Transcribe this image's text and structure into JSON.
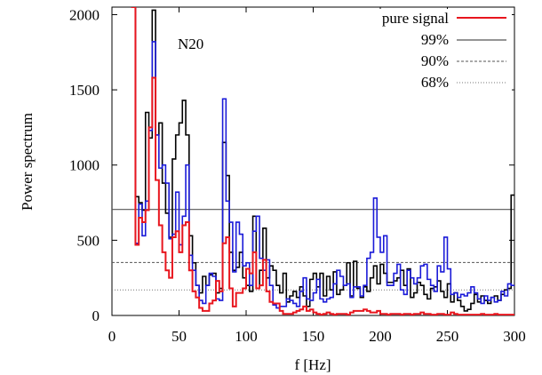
{
  "chart_data": {
    "type": "line",
    "step": true,
    "xlabel": "f [Hz]",
    "ylabel": "Power spectrum",
    "xlim": [
      0,
      300
    ],
    "ylim": [
      0,
      2050
    ],
    "xticks": [
      0,
      50,
      100,
      150,
      200,
      250,
      300
    ],
    "yticks": [
      0,
      500,
      1000,
      1500,
      2000
    ],
    "annotation": "N20",
    "legend_position": "top-right",
    "x": [
      15,
      17.5,
      20,
      22.5,
      25,
      27.5,
      30,
      32.5,
      35,
      37.5,
      40,
      42.5,
      45,
      47.5,
      50,
      52.5,
      55,
      57.5,
      60,
      62.5,
      65,
      67.5,
      70,
      72.5,
      75,
      77.5,
      80,
      82.5,
      85,
      87.5,
      90,
      92.5,
      95,
      97.5,
      100,
      102.5,
      105,
      107.5,
      110,
      112.5,
      115,
      117.5,
      120,
      122.5,
      125,
      127.5,
      130,
      132.5,
      135,
      137.5,
      140,
      142.5,
      145,
      147.5,
      150,
      152.5,
      155,
      157.5,
      160,
      162.5,
      165,
      167.5,
      170,
      172.5,
      175,
      177.5,
      180,
      182.5,
      185,
      187.5,
      190,
      192.5,
      195,
      197.5,
      200,
      202.5,
      205,
      207.5,
      210,
      212.5,
      215,
      217.5,
      220,
      222.5,
      225,
      227.5,
      230,
      232.5,
      235,
      237.5,
      240,
      242.5,
      245,
      247.5,
      250,
      252.5,
      255,
      257.5,
      260,
      262.5,
      265,
      267.5,
      270,
      272.5,
      275,
      277.5,
      280,
      282.5,
      285,
      287.5,
      290,
      292.5,
      295,
      297.5
    ],
    "series": [
      {
        "name": "pure signal",
        "color": "#e8161e",
        "dash": "solid",
        "values": [
          2050,
          470,
          650,
          620,
          700,
          1250,
          1580,
          900,
          600,
          420,
          300,
          250,
          520,
          560,
          420,
          600,
          620,
          300,
          160,
          120,
          50,
          30,
          30,
          80,
          100,
          230,
          160,
          480,
          520,
          180,
          60,
          150,
          150,
          180,
          310,
          280,
          420,
          180,
          200,
          370,
          160,
          90,
          80,
          80,
          30,
          10,
          10,
          10,
          20,
          30,
          40,
          60,
          30,
          40,
          20,
          10,
          5,
          10,
          20,
          10,
          5,
          10,
          10,
          10,
          5,
          20,
          30,
          30,
          30,
          40,
          30,
          20,
          20,
          30,
          10,
          10,
          5,
          10,
          10,
          10,
          5,
          10,
          10,
          5,
          10,
          10,
          20,
          10,
          10,
          5,
          5,
          10,
          10,
          5,
          5,
          20,
          10,
          5,
          5,
          5,
          5,
          5,
          5,
          5,
          10,
          5,
          5,
          5,
          10,
          5,
          5,
          5,
          5,
          5
        ]
      },
      {
        "name": "",
        "color": "#000000",
        "dash": "solid",
        "values": [
          2050,
          790,
          750,
          700,
          1350,
          1180,
          2030,
          1200,
          1280,
          880,
          680,
          520,
          1040,
          1200,
          1280,
          1430,
          1200,
          530,
          350,
          200,
          150,
          260,
          200,
          270,
          280,
          150,
          180,
          1150,
          930,
          420,
          300,
          320,
          420,
          250,
          200,
          160,
          660,
          180,
          300,
          580,
          250,
          330,
          300,
          200,
          150,
          280,
          90,
          130,
          160,
          120,
          190,
          130,
          60,
          240,
          280,
          190,
          280,
          130,
          260,
          170,
          290,
          140,
          170,
          200,
          350,
          130,
          360,
          180,
          120,
          190,
          160,
          250,
          330,
          210,
          340,
          280,
          220,
          220,
          230,
          250,
          300,
          200,
          310,
          120,
          150,
          220,
          200,
          140,
          110,
          180,
          190,
          230,
          160,
          120,
          210,
          90,
          150,
          100,
          60,
          30,
          40,
          80,
          140,
          90,
          130,
          100,
          80,
          120,
          130,
          100,
          140,
          170,
          180,
          800
        ]
      },
      {
        "name": "",
        "color": "#1a1ad8",
        "dash": "solid",
        "values": [
          2050,
          480,
          740,
          530,
          760,
          1230,
          1820,
          1200,
          980,
          1000,
          880,
          510,
          540,
          820,
          470,
          660,
          1000,
          400,
          300,
          200,
          100,
          80,
          200,
          280,
          260,
          110,
          100,
          1440,
          760,
          620,
          290,
          620,
          540,
          330,
          350,
          200,
          560,
          660,
          380,
          300,
          370,
          200,
          70,
          50,
          60,
          60,
          110,
          100,
          80,
          60,
          160,
          250,
          110,
          100,
          150,
          240,
          110,
          90,
          110,
          120,
          210,
          300,
          260,
          200,
          210,
          120,
          190,
          190,
          130,
          200,
          380,
          420,
          780,
          520,
          420,
          530,
          200,
          200,
          280,
          340,
          170,
          140,
          300,
          250,
          210,
          250,
          330,
          340,
          240,
          200,
          160,
          330,
          290,
          520,
          310,
          140,
          150,
          120,
          140,
          130,
          150,
          190,
          150,
          110,
          80,
          130,
          100,
          120,
          90,
          100,
          160,
          130,
          210,
          200
        ]
      }
    ],
    "thresholds": [
      {
        "name": "99%",
        "value": 705,
        "color": "#555555",
        "dash": "solid"
      },
      {
        "name": "90%",
        "value": 352,
        "color": "#555555",
        "dash": "dashed"
      },
      {
        "name": "68%",
        "value": 170,
        "color": "#777777",
        "dash": "dotted"
      }
    ]
  }
}
